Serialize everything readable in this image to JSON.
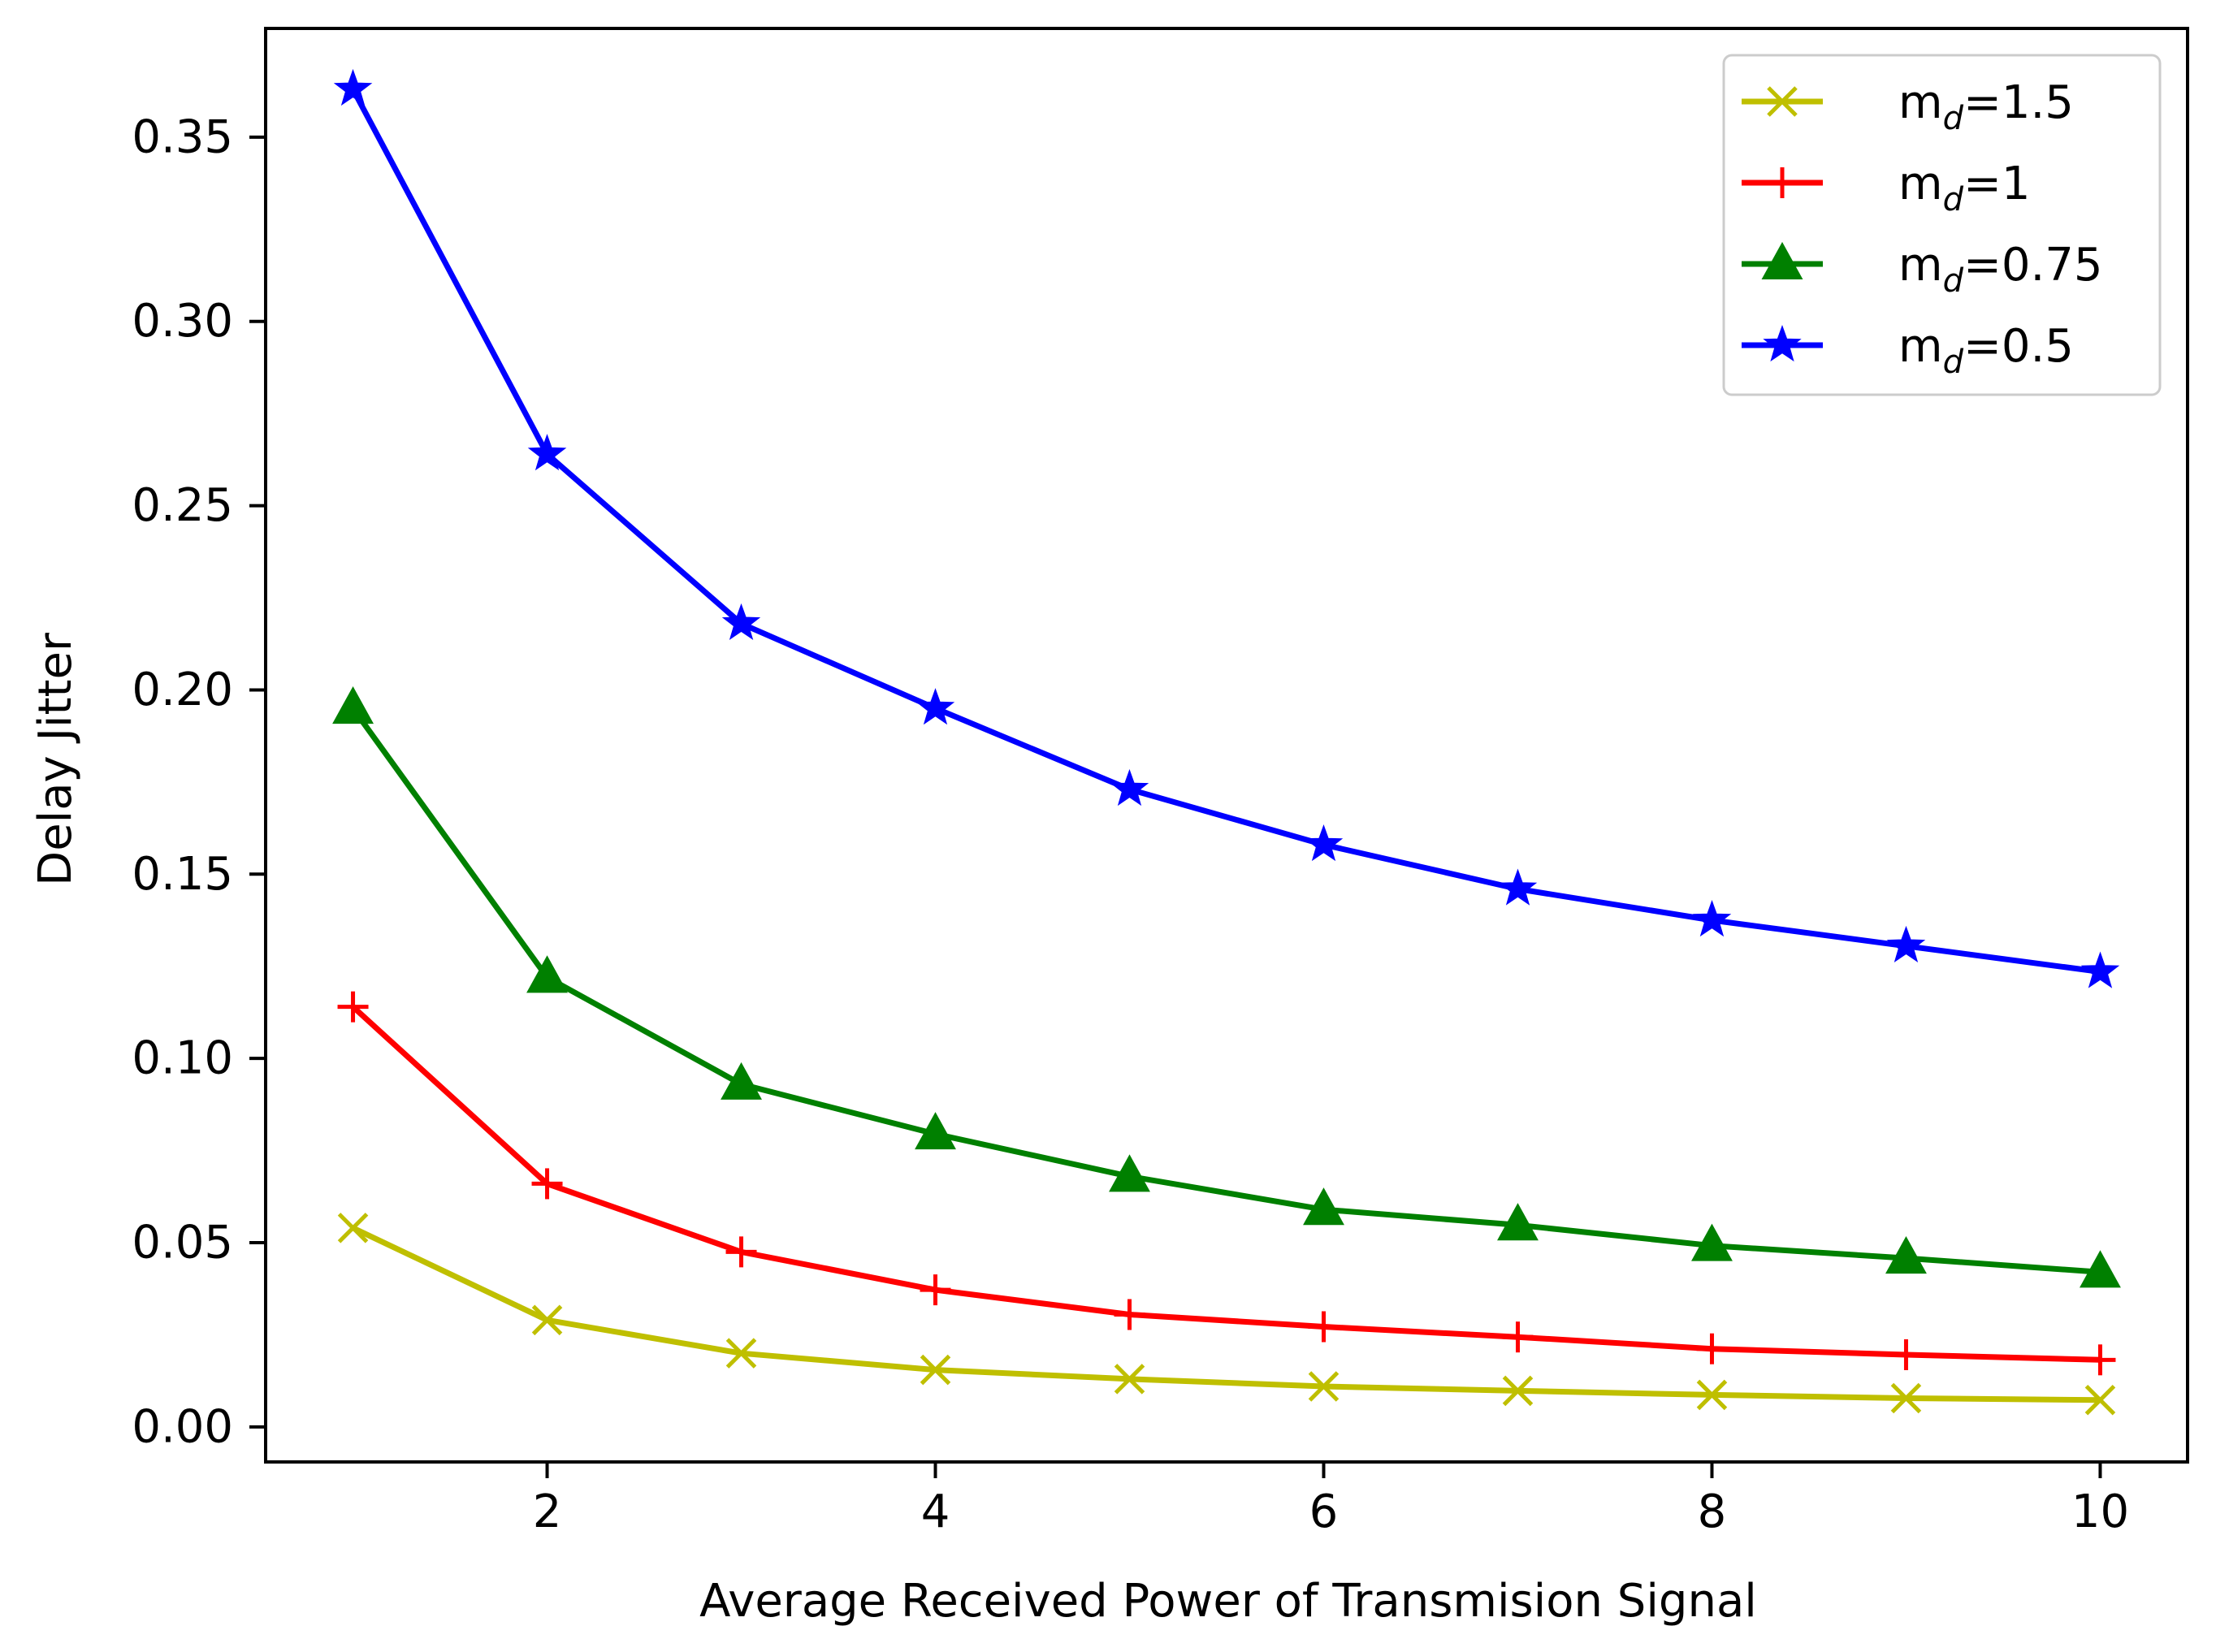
{
  "chart_data": {
    "type": "line",
    "title": "",
    "xlabel": "Average Received Power of Transmision Signal",
    "ylabel": "Delay Jitter",
    "xlim": [
      0.55,
      10.45
    ],
    "ylim": [
      -0.0095,
      0.3795
    ],
    "grid": false,
    "legend_position": "top-right",
    "x": [
      1,
      2,
      3,
      4,
      5,
      6,
      7,
      8,
      9,
      10
    ],
    "xticks": [
      2,
      4,
      6,
      8,
      10
    ],
    "xtick_labels": [
      "2",
      "4",
      "6",
      "8",
      "10"
    ],
    "yticks": [
      0.0,
      0.05,
      0.1,
      0.15,
      0.2,
      0.25,
      0.3,
      0.35
    ],
    "ytick_labels": [
      "0.00",
      "0.05",
      "0.10",
      "0.15",
      "0.20",
      "0.25",
      "0.30",
      "0.35"
    ],
    "series": [
      {
        "name": "m_d=1.5",
        "legend_base": "m",
        "legend_sub": "d",
        "legend_rest": "=1.5",
        "color": "#bfbf00",
        "marker": "x",
        "values": [
          0.054,
          0.029,
          0.02,
          0.0155,
          0.013,
          0.011,
          0.0098,
          0.0087,
          0.0078,
          0.0073
        ]
      },
      {
        "name": "m_d=1",
        "legend_base": "m",
        "legend_sub": "d",
        "legend_rest": "=1",
        "color": "#ff0000",
        "marker": "plus",
        "values": [
          0.114,
          0.066,
          0.0475,
          0.0372,
          0.0305,
          0.0272,
          0.0244,
          0.0212,
          0.0196,
          0.0182
        ]
      },
      {
        "name": "m_d=0.75",
        "legend_base": "m",
        "legend_sub": "d",
        "legend_rest": "=0.75",
        "color": "#008000",
        "marker": "triangle",
        "values": [
          0.195,
          0.122,
          0.093,
          0.0795,
          0.068,
          0.059,
          0.0548,
          0.0492,
          0.0458,
          0.042
        ]
      },
      {
        "name": "m_d=0.5",
        "legend_base": "m",
        "legend_sub": "d",
        "legend_rest": "=0.5",
        "color": "#0000ff",
        "marker": "star",
        "values": [
          0.363,
          0.264,
          0.218,
          0.195,
          0.173,
          0.158,
          0.146,
          0.1375,
          0.1305,
          0.1235
        ]
      }
    ]
  }
}
